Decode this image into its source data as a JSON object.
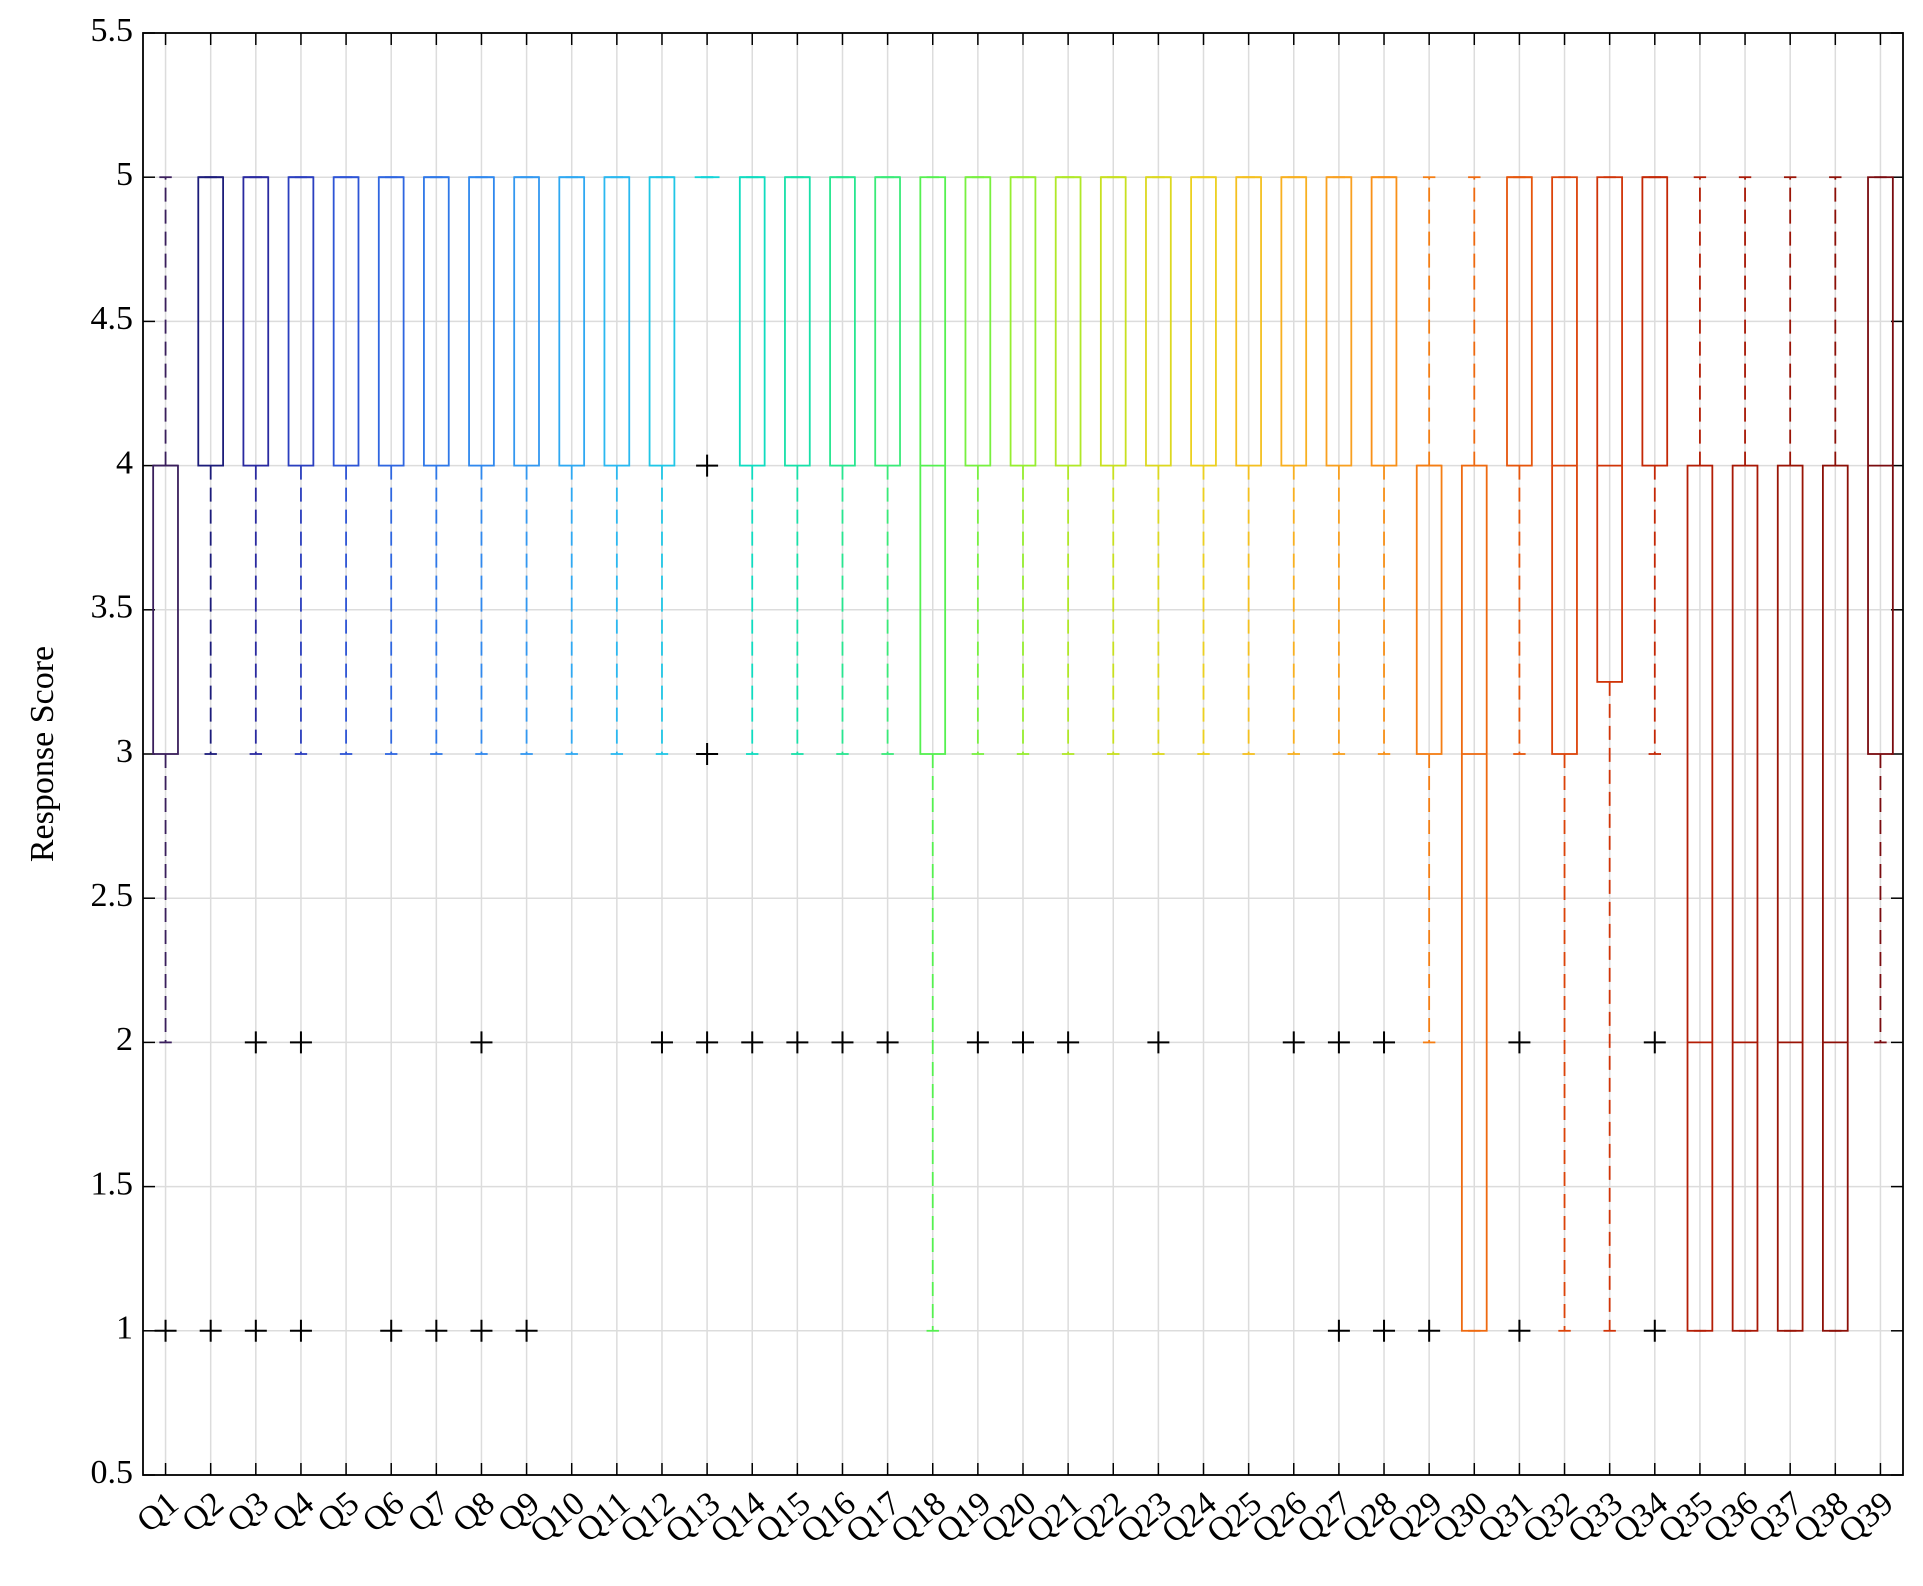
{
  "chart_data": {
    "type": "box",
    "ylabel": "Response Score",
    "ylim": [
      0.5,
      5.5
    ],
    "yticks": [
      0.5,
      1,
      1.5,
      2,
      2.5,
      3,
      3.5,
      4,
      4.5,
      5,
      5.5
    ],
    "grid": true,
    "categories": [
      "Q1",
      "Q2",
      "Q3",
      "Q4",
      "Q5",
      "Q6",
      "Q7",
      "Q8",
      "Q9",
      "Q10",
      "Q11",
      "Q12",
      "Q13",
      "Q14",
      "Q15",
      "Q16",
      "Q17",
      "Q18",
      "Q19",
      "Q20",
      "Q21",
      "Q22",
      "Q23",
      "Q24",
      "Q25",
      "Q26",
      "Q27",
      "Q28",
      "Q29",
      "Q30",
      "Q31",
      "Q32",
      "Q33",
      "Q34",
      "Q35",
      "Q36",
      "Q37",
      "Q38",
      "Q39"
    ],
    "boxes": [
      {
        "min": 2,
        "q1": 3,
        "median": 4,
        "q3": 4,
        "max": 5,
        "outliers": [
          1
        ],
        "color": "#3a1f5c"
      },
      {
        "min": 3,
        "q1": 4,
        "median": 5,
        "q3": 5,
        "max": 5,
        "outliers": [
          1
        ],
        "color": "#1c1c7a"
      },
      {
        "min": 3,
        "q1": 4,
        "median": 5,
        "q3": 5,
        "max": 5,
        "outliers": [
          2,
          1
        ],
        "color": "#2a2aa0"
      },
      {
        "min": 3,
        "q1": 4,
        "median": 5,
        "q3": 5,
        "max": 5,
        "outliers": [
          2,
          1
        ],
        "color": "#2b3fbf"
      },
      {
        "min": 3,
        "q1": 4,
        "median": 5,
        "q3": 5,
        "max": 5,
        "outliers": [],
        "color": "#2e55d6"
      },
      {
        "min": 3,
        "q1": 4,
        "median": 5,
        "q3": 5,
        "max": 5,
        "outliers": [
          1
        ],
        "color": "#2f66e0"
      },
      {
        "min": 3,
        "q1": 4,
        "median": 5,
        "q3": 5,
        "max": 5,
        "outliers": [
          1
        ],
        "color": "#2f78e8"
      },
      {
        "min": 3,
        "q1": 4,
        "median": 5,
        "q3": 5,
        "max": 5,
        "outliers": [
          2,
          1
        ],
        "color": "#3088ee"
      },
      {
        "min": 3,
        "q1": 4,
        "median": 5,
        "q3": 5,
        "max": 5,
        "outliers": [
          1
        ],
        "color": "#3398f0"
      },
      {
        "min": 3,
        "q1": 4,
        "median": 5,
        "q3": 5,
        "max": 5,
        "outliers": [],
        "color": "#2fa8f2"
      },
      {
        "min": 3,
        "q1": 4,
        "median": 5,
        "q3": 5,
        "max": 5,
        "outliers": [],
        "color": "#2bb8f0"
      },
      {
        "min": 3,
        "q1": 4,
        "median": 5,
        "q3": 5,
        "max": 5,
        "outliers": [
          2
        ],
        "color": "#20c6e6"
      },
      {
        "min": 5,
        "q1": 5,
        "median": 5,
        "q3": 5,
        "max": 5,
        "outliers": [
          4,
          3,
          2
        ],
        "color": "#14d4d8"
      },
      {
        "min": 3,
        "q1": 4,
        "median": 5,
        "q3": 5,
        "max": 5,
        "outliers": [
          2
        ],
        "color": "#10dcc0"
      },
      {
        "min": 3,
        "q1": 4,
        "median": 5,
        "q3": 5,
        "max": 5,
        "outliers": [
          2
        ],
        "color": "#18e0a8"
      },
      {
        "min": 3,
        "q1": 4,
        "median": 5,
        "q3": 5,
        "max": 5,
        "outliers": [
          2
        ],
        "color": "#28e690"
      },
      {
        "min": 3,
        "q1": 4,
        "median": 5,
        "q3": 5,
        "max": 5,
        "outliers": [
          2
        ],
        "color": "#3aea78"
      },
      {
        "min": 1,
        "q1": 3,
        "median": 4,
        "q3": 5,
        "max": 5,
        "outliers": [],
        "color": "#55f050"
      },
      {
        "min": 3,
        "q1": 4,
        "median": 5,
        "q3": 5,
        "max": 5,
        "outliers": [
          2
        ],
        "color": "#78f040"
      },
      {
        "min": 3,
        "q1": 4,
        "median": 5,
        "q3": 5,
        "max": 5,
        "outliers": [
          2
        ],
        "color": "#96ee30"
      },
      {
        "min": 3,
        "q1": 4,
        "median": 5,
        "q3": 5,
        "max": 5,
        "outliers": [
          2
        ],
        "color": "#b0e828"
      },
      {
        "min": 3,
        "q1": 4,
        "median": 5,
        "q3": 5,
        "max": 5,
        "outliers": [],
        "color": "#c8e020"
      },
      {
        "min": 3,
        "q1": 4,
        "median": 5,
        "q3": 5,
        "max": 5,
        "outliers": [
          2
        ],
        "color": "#dcd820"
      },
      {
        "min": 3,
        "q1": 4,
        "median": 5,
        "q3": 5,
        "max": 5,
        "outliers": [],
        "color": "#ecd020"
      },
      {
        "min": 3,
        "q1": 4,
        "median": 5,
        "q3": 5,
        "max": 5,
        "outliers": [],
        "color": "#f4c020"
      },
      {
        "min": 3,
        "q1": 4,
        "median": 5,
        "q3": 5,
        "max": 5,
        "outliers": [
          2
        ],
        "color": "#f8b020"
      },
      {
        "min": 3,
        "q1": 4,
        "median": 5,
        "q3": 5,
        "max": 5,
        "outliers": [
          2,
          1
        ],
        "color": "#f8a020"
      },
      {
        "min": 3,
        "q1": 4,
        "median": 5,
        "q3": 5,
        "max": 5,
        "outliers": [
          2,
          1
        ],
        "color": "#f89018"
      },
      {
        "min": 2,
        "q1": 3,
        "median": 4,
        "q3": 4,
        "max": 5,
        "outliers": [
          1
        ],
        "color": "#f47e14"
      },
      {
        "min": 1,
        "q1": 1,
        "median": 3,
        "q3": 4,
        "max": 5,
        "outliers": [],
        "color": "#ee6a10"
      },
      {
        "min": 3,
        "q1": 4,
        "median": 5,
        "q3": 5,
        "max": 5,
        "outliers": [
          2,
          1
        ],
        "color": "#e6560c"
      },
      {
        "min": 1,
        "q1": 3,
        "median": 4,
        "q3": 5,
        "max": 5,
        "outliers": [],
        "color": "#dc440a"
      },
      {
        "min": 1,
        "q1": 3.25,
        "median": 4,
        "q3": 5,
        "max": 5,
        "outliers": [],
        "color": "#d03408"
      },
      {
        "min": 3,
        "q1": 4,
        "median": 5,
        "q3": 5,
        "max": 5,
        "outliers": [
          2,
          1
        ],
        "color": "#c42806"
      },
      {
        "min": 1,
        "q1": 1,
        "median": 2,
        "q3": 4,
        "max": 5,
        "outliers": [],
        "color": "#b41e06"
      },
      {
        "min": 1,
        "q1": 1,
        "median": 2,
        "q3": 4,
        "max": 5,
        "outliers": [],
        "color": "#a81806"
      },
      {
        "min": 1,
        "q1": 1,
        "median": 2,
        "q3": 4,
        "max": 5,
        "outliers": [],
        "color": "#9a1406"
      },
      {
        "min": 1,
        "q1": 1,
        "median": 2,
        "q3": 4,
        "max": 5,
        "outliers": [],
        "color": "#8c1008"
      },
      {
        "min": 2,
        "q1": 3,
        "median": 4,
        "q3": 5,
        "max": 5,
        "outliers": [],
        "color": "#7a0c10"
      }
    ]
  }
}
